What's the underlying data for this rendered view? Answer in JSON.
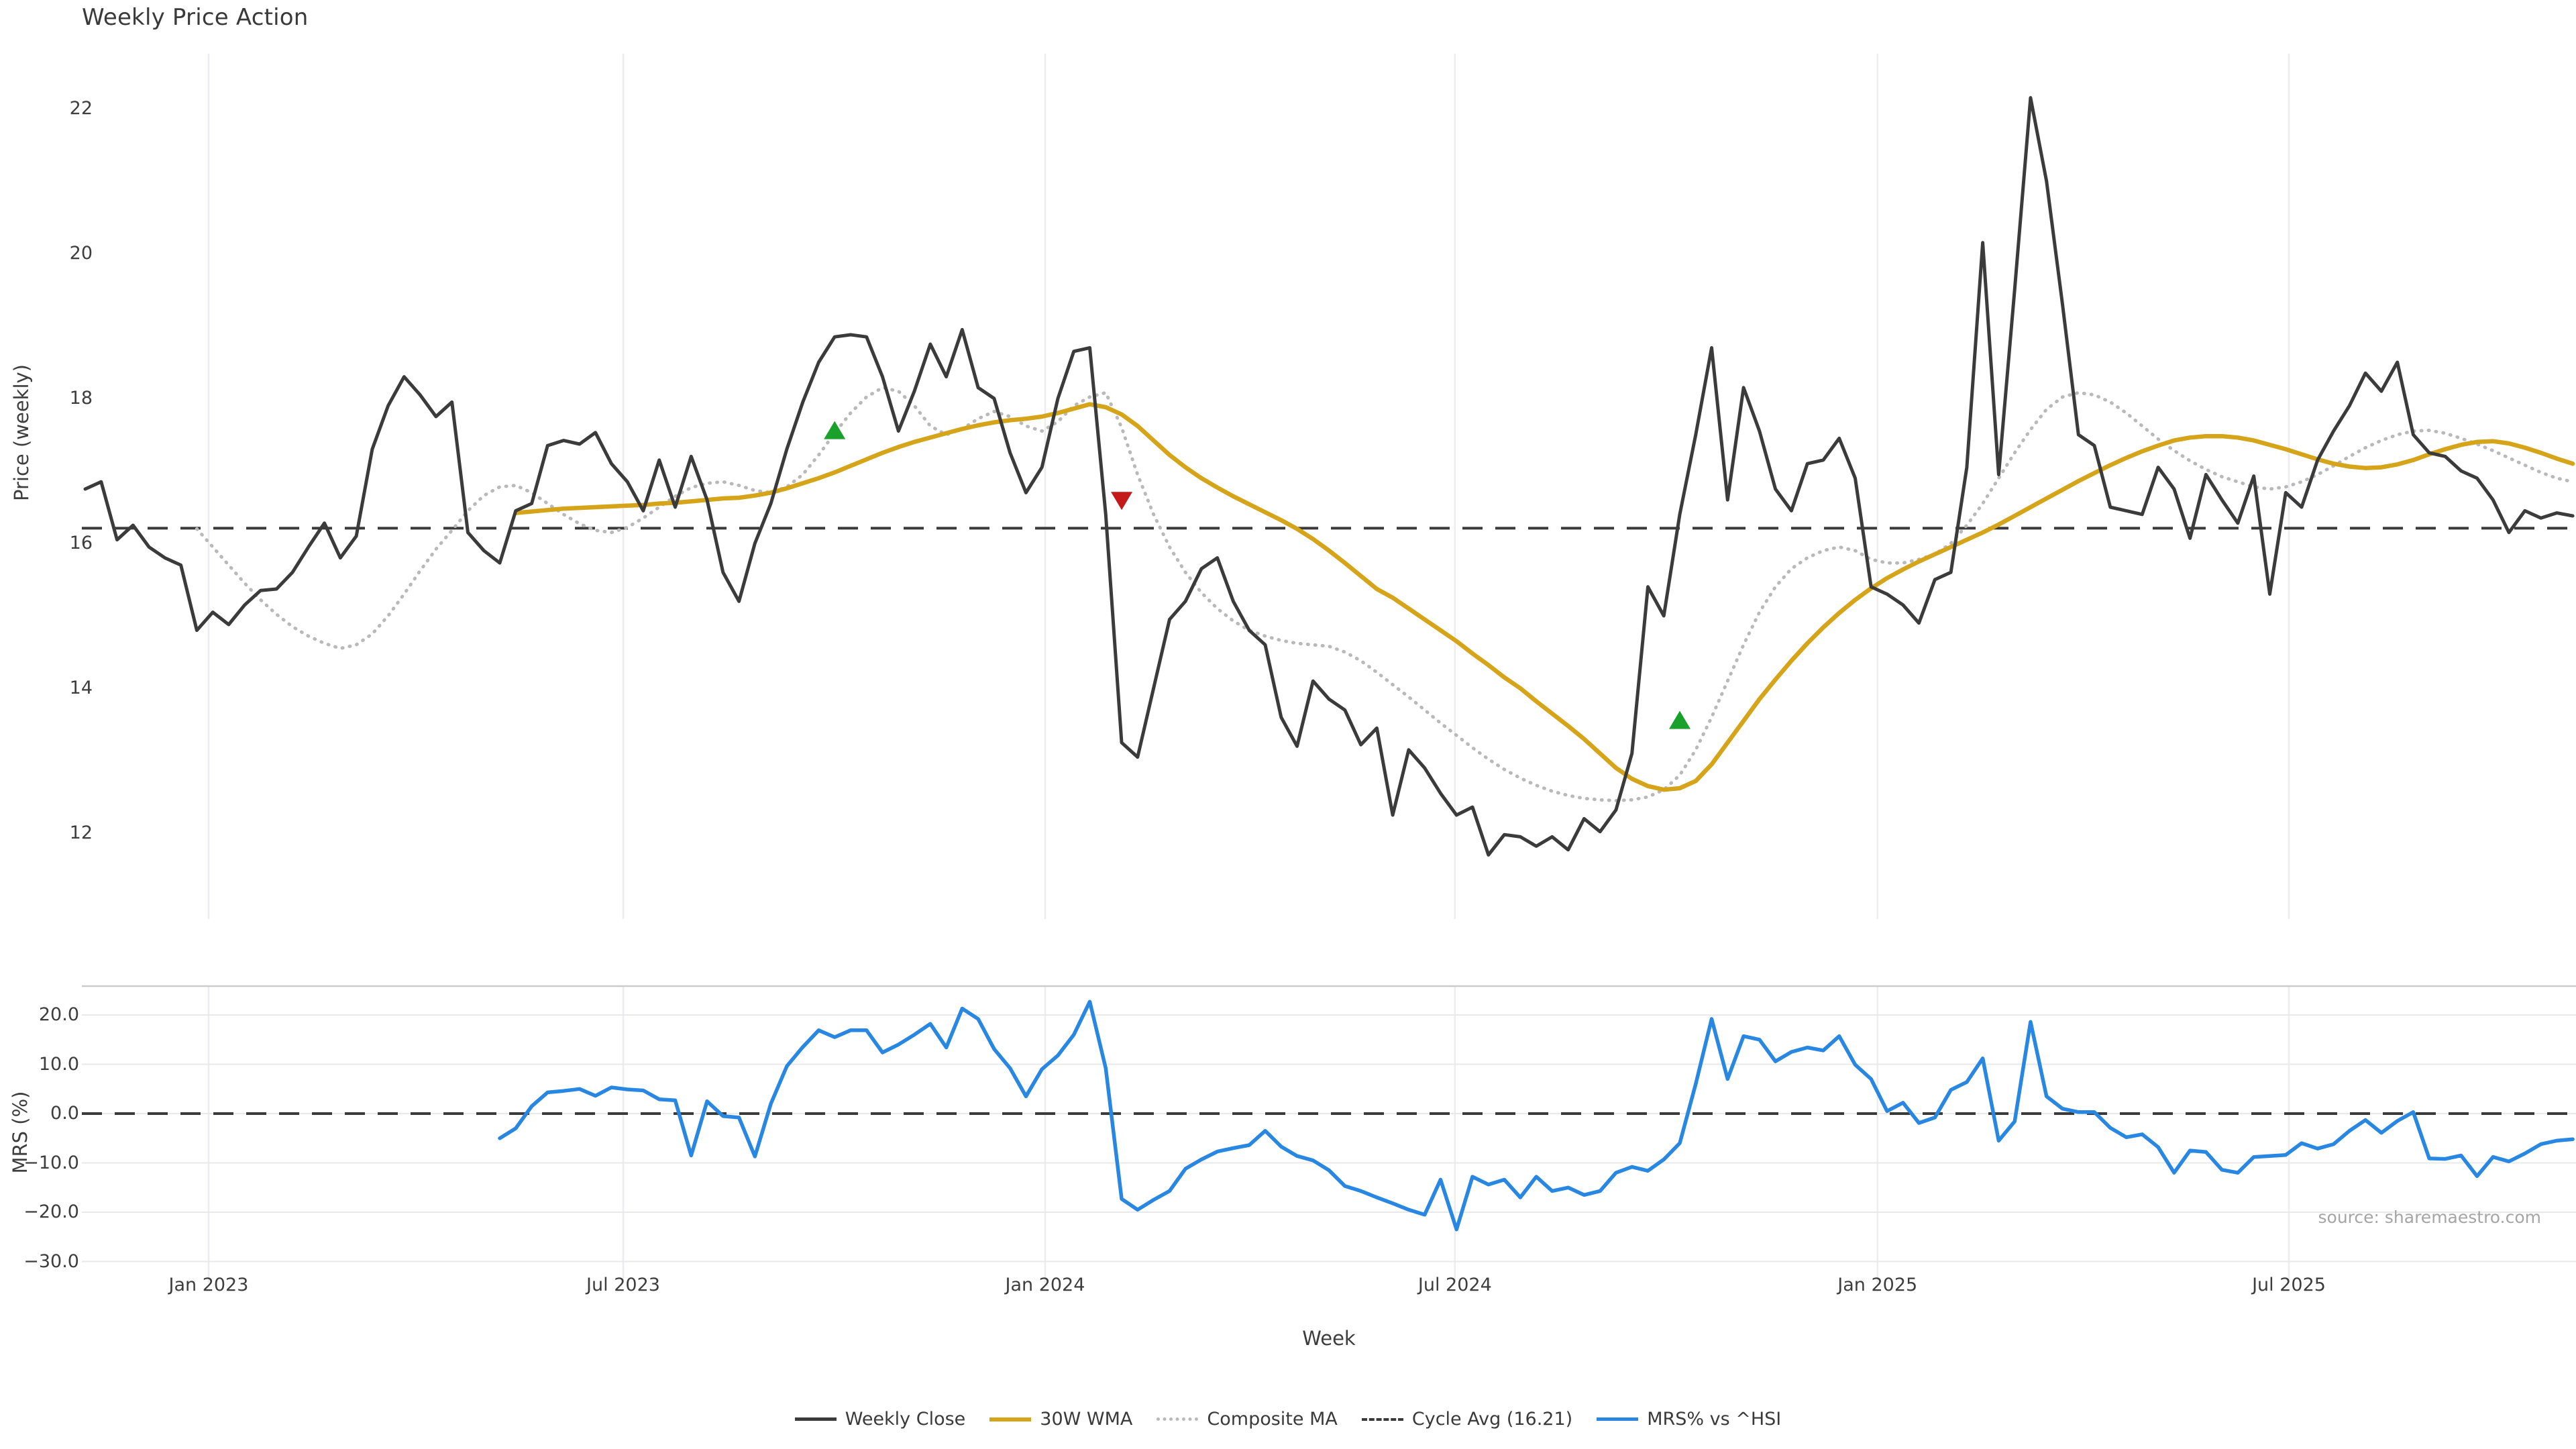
{
  "title": "Weekly Price Action",
  "xlabel": "Week",
  "source": "source: sharemaestro.com",
  "price_panel": {
    "ylabel": "Price (weekly)"
  },
  "mrs_panel": {
    "ylabel": "MRS (%)"
  },
  "legend": {
    "items": [
      {
        "label": "Weekly Close",
        "style": "solid",
        "color": "#3b3b3b",
        "thickness": 5
      },
      {
        "label": "30W WMA",
        "style": "solid",
        "color": "#d6a418",
        "thickness": 6
      },
      {
        "label": "Composite MA",
        "style": "dotted",
        "color": "#b9b9b9",
        "thickness": 5
      },
      {
        "label": "Cycle Avg (16.21)",
        "style": "dashed",
        "color": "#3a3a3a",
        "thickness": 4
      },
      {
        "label": "MRS% vs ^HSI",
        "style": "solid",
        "color": "#2787e2",
        "thickness": 5
      }
    ]
  },
  "chart_data": {
    "type": "line",
    "title": "Weekly Price Action",
    "x_unit": "weeks (weekly data, ~Nov 2022 to ~Oct 2025)",
    "panels": [
      {
        "id": "price",
        "ylabel": "Price (weekly)",
        "ylim": [
          11.3,
          22.6
        ],
        "grid": "vertical-only"
      },
      {
        "id": "mrs",
        "ylabel": "MRS (%)",
        "ylim": [
          -32,
          26
        ],
        "grid": "horizontal+vertical"
      }
    ],
    "xticks": [
      {
        "week": 7.74,
        "label": "Jan 2023"
      },
      {
        "week": 33.74,
        "label": "Jul 2023"
      },
      {
        "week": 60.2,
        "label": "Jan 2024"
      },
      {
        "week": 85.9,
        "label": "Jul 2024"
      },
      {
        "week": 112.4,
        "label": "Jan 2025"
      },
      {
        "week": 138.2,
        "label": "Jul 2025"
      }
    ],
    "price_yticks": [
      {
        "v": 12,
        "label": "12"
      },
      {
        "v": 14,
        "label": "14"
      },
      {
        "v": 16,
        "label": "16"
      },
      {
        "v": 18,
        "label": "18"
      },
      {
        "v": 20,
        "label": "20"
      },
      {
        "v": 22,
        "label": "22"
      }
    ],
    "mrs_yticks": [
      {
        "v": 20,
        "label": "20.0"
      },
      {
        "v": 10,
        "label": "10.0"
      },
      {
        "v": 0,
        "label": "0.0"
      },
      {
        "v": -10,
        "label": "−10.0"
      },
      {
        "v": -20,
        "label": "−20.0"
      },
      {
        "v": -30,
        "label": "−30.0"
      }
    ],
    "cycle_avg": 16.21,
    "mrs_zero_line": 0,
    "series": [
      {
        "name": "Weekly Close",
        "panel": "price",
        "style": "solid",
        "color": "#3b3b3b",
        "start_index": 0,
        "values": [
          16.75,
          16.85,
          16.05,
          16.25,
          15.95,
          15.8,
          15.7,
          14.8,
          15.05,
          14.88,
          15.15,
          15.35,
          15.37,
          15.6,
          15.95,
          16.28,
          15.8,
          16.1,
          17.3,
          17.9,
          18.3,
          18.05,
          17.75,
          17.95,
          16.15,
          15.9,
          15.73,
          16.45,
          16.55,
          17.35,
          17.42,
          17.37,
          17.53,
          17.1,
          16.85,
          16.45,
          17.15,
          16.5,
          17.2,
          16.6,
          15.6,
          15.2,
          16.0,
          16.55,
          17.3,
          17.95,
          18.5,
          18.85,
          18.88,
          18.85,
          18.3,
          17.55,
          18.1,
          18.75,
          18.3,
          18.95,
          18.15,
          18.0,
          17.25,
          16.7,
          17.05,
          18.0,
          18.65,
          18.7,
          16.4,
          13.25,
          13.05,
          14.0,
          14.95,
          15.2,
          15.65,
          15.8,
          15.2,
          14.8,
          14.6,
          13.6,
          13.2,
          14.1,
          13.85,
          13.7,
          13.22,
          13.45,
          12.25,
          13.15,
          12.9,
          12.55,
          12.25,
          12.36,
          11.7,
          11.98,
          11.95,
          11.82,
          11.95,
          11.77,
          12.2,
          12.02,
          12.32,
          13.1,
          15.4,
          15.0,
          16.4,
          17.5,
          18.7,
          16.6,
          18.15,
          17.55,
          16.75,
          16.45,
          17.1,
          17.15,
          17.45,
          16.9,
          15.4,
          15.3,
          15.15,
          14.9,
          15.5,
          15.6,
          17.05,
          20.15,
          16.95,
          19.5,
          22.15,
          21.0,
          19.3,
          17.5,
          17.35,
          16.5,
          16.45,
          16.4,
          17.05,
          16.75,
          16.07,
          16.95,
          16.6,
          16.28,
          16.93,
          15.3,
          16.7,
          16.5,
          17.15,
          17.55,
          17.9,
          18.35,
          18.1,
          18.5,
          17.5,
          17.25,
          17.2,
          17.0,
          16.9,
          16.6,
          16.15,
          16.45,
          16.35,
          16.42,
          16.38
        ]
      },
      {
        "name": "30W WMA",
        "panel": "price",
        "style": "solid",
        "color": "#d6a418",
        "start_index": 27,
        "values": [
          16.42,
          16.44,
          16.46,
          16.48,
          16.49,
          16.5,
          16.51,
          16.52,
          16.53,
          16.55,
          16.56,
          16.58,
          16.6,
          16.62,
          16.63,
          16.66,
          16.7,
          16.76,
          16.83,
          16.9,
          16.98,
          17.07,
          17.16,
          17.25,
          17.33,
          17.4,
          17.46,
          17.52,
          17.58,
          17.63,
          17.67,
          17.7,
          17.72,
          17.75,
          17.8,
          17.86,
          17.92,
          17.88,
          17.78,
          17.62,
          17.42,
          17.22,
          17.05,
          16.9,
          16.77,
          16.65,
          16.54,
          16.43,
          16.32,
          16.2,
          16.06,
          15.9,
          15.73,
          15.55,
          15.37,
          15.25,
          15.1,
          14.95,
          14.8,
          14.65,
          14.48,
          14.32,
          14.15,
          14.0,
          13.82,
          13.65,
          13.48,
          13.3,
          13.1,
          12.9,
          12.75,
          12.65,
          12.6,
          12.62,
          12.72,
          12.95,
          13.25,
          13.55,
          13.85,
          14.12,
          14.38,
          14.62,
          14.84,
          15.04,
          15.22,
          15.38,
          15.52,
          15.64,
          15.75,
          15.85,
          15.95,
          16.05,
          16.15,
          16.26,
          16.38,
          16.5,
          16.62,
          16.74,
          16.86,
          16.97,
          17.08,
          17.18,
          17.27,
          17.35,
          17.42,
          17.46,
          17.48,
          17.48,
          17.46,
          17.42,
          17.36,
          17.3,
          17.23,
          17.16,
          17.1,
          17.06,
          17.04,
          17.05,
          17.09,
          17.15,
          17.23,
          17.3,
          17.36,
          17.4,
          17.41,
          17.38,
          17.32,
          17.25,
          17.17,
          17.1
        ]
      },
      {
        "name": "Composite MA",
        "panel": "price",
        "style": "dotted",
        "color": "#b9b9b9",
        "start_index": 7,
        "values": [
          16.2,
          15.95,
          15.7,
          15.45,
          15.22,
          15.02,
          14.85,
          14.72,
          14.62,
          14.55,
          14.6,
          14.75,
          15.0,
          15.3,
          15.62,
          15.92,
          16.18,
          16.45,
          16.66,
          16.78,
          16.8,
          16.7,
          16.55,
          16.4,
          16.27,
          16.18,
          16.15,
          16.22,
          16.35,
          16.5,
          16.65,
          16.77,
          16.83,
          16.85,
          16.8,
          16.73,
          16.7,
          16.78,
          16.95,
          17.22,
          17.52,
          17.8,
          18.02,
          18.15,
          18.1,
          17.9,
          17.62,
          17.5,
          17.58,
          17.72,
          17.82,
          17.75,
          17.62,
          17.55,
          17.68,
          17.9,
          18.02,
          18.08,
          17.6,
          16.95,
          16.4,
          15.95,
          15.6,
          15.32,
          15.1,
          14.93,
          14.8,
          14.72,
          14.66,
          14.62,
          14.6,
          14.58,
          14.5,
          14.38,
          14.22,
          14.05,
          13.88,
          13.7,
          13.52,
          13.35,
          13.18,
          13.02,
          12.88,
          12.76,
          12.66,
          12.58,
          12.52,
          12.48,
          12.46,
          12.45,
          12.46,
          12.5,
          12.6,
          12.8,
          13.15,
          13.6,
          14.1,
          14.6,
          15.05,
          15.4,
          15.65,
          15.8,
          15.9,
          15.95,
          15.9,
          15.78,
          15.73,
          15.73,
          15.78,
          15.85,
          16.0,
          16.25,
          16.55,
          16.9,
          17.25,
          17.57,
          17.85,
          18.02,
          18.08,
          18.05,
          17.95,
          17.8,
          17.62,
          17.44,
          17.28,
          17.14,
          17.02,
          16.92,
          16.85,
          16.78,
          16.75,
          16.78,
          16.85,
          16.95,
          17.07,
          17.2,
          17.32,
          17.42,
          17.5,
          17.55,
          17.56,
          17.52,
          17.45,
          17.37,
          17.28,
          17.18,
          17.08,
          16.98,
          16.9,
          16.85
        ]
      },
      {
        "name": "MRS% vs ^HSI",
        "panel": "mrs",
        "style": "solid",
        "color": "#2787e2",
        "start_index": 26,
        "values": [
          -5.0,
          -3.0,
          1.5,
          4.3,
          4.6,
          5.0,
          3.6,
          5.3,
          4.9,
          4.7,
          2.9,
          2.7,
          -8.5,
          2.5,
          -0.5,
          -0.8,
          -8.7,
          2.0,
          9.6,
          13.5,
          16.9,
          15.5,
          16.9,
          16.9,
          12.4,
          14.0,
          16.0,
          18.2,
          13.4,
          21.3,
          19.2,
          13.1,
          9.2,
          3.5,
          9.0,
          11.8,
          16.0,
          22.7,
          9.2,
          -17.3,
          -19.5,
          -17.5,
          -15.7,
          -11.2,
          -9.3,
          -7.7,
          -7.0,
          -6.4,
          -3.5,
          -6.7,
          -8.6,
          -9.5,
          -11.5,
          -14.7,
          -15.7,
          -17.0,
          -18.2,
          -19.5,
          -20.5,
          -13.4,
          -23.5,
          -12.8,
          -14.4,
          -13.4,
          -17.0,
          -12.8,
          -15.7,
          -15.0,
          -16.5,
          -15.7,
          -12.0,
          -10.8,
          -11.6,
          -9.3,
          -6.0,
          6.0,
          19.2,
          7.0,
          15.7,
          15.0,
          10.6,
          12.5,
          13.4,
          12.8,
          15.7,
          9.9,
          7.0,
          0.5,
          2.2,
          -1.9,
          -0.8,
          4.8,
          6.4,
          11.2,
          -5.5,
          -1.6,
          18.6,
          3.5,
          1.0,
          0.3,
          0.3,
          -2.9,
          -4.8,
          -4.2,
          -6.8,
          -12.0,
          -7.5,
          -7.8,
          -11.4,
          -12.0,
          -8.8,
          -8.6,
          -8.4,
          -6.0,
          -7.1,
          -6.2,
          -3.5,
          -1.3,
          -3.9,
          -1.5,
          0.3,
          -9.1,
          -9.2,
          -8.5,
          -12.7,
          -8.8,
          -9.7,
          -8.1,
          -6.2,
          -5.5,
          -5.2
        ]
      }
    ],
    "markers": [
      {
        "shape": "triangle-up",
        "color": "#1aa12b",
        "week": 47,
        "price": 17.55
      },
      {
        "shape": "triangle-down",
        "color": "#c51a1a",
        "week": 65,
        "price": 16.6
      },
      {
        "shape": "triangle-up",
        "color": "#1aa12b",
        "week": 100,
        "price": 13.55
      }
    ],
    "legend_position": "bottom-center",
    "colors": {
      "weekly_close": "#3b3b3b",
      "wma_30w": "#d6a418",
      "composite_ma": "#b9b9b9",
      "cycle_avg": "#3a3a3a",
      "mrs": "#2787e2",
      "signal_up": "#1aa12b",
      "signal_down": "#c51a1a",
      "grid": "#ececf1",
      "panel_spine": "#cccccc"
    }
  }
}
